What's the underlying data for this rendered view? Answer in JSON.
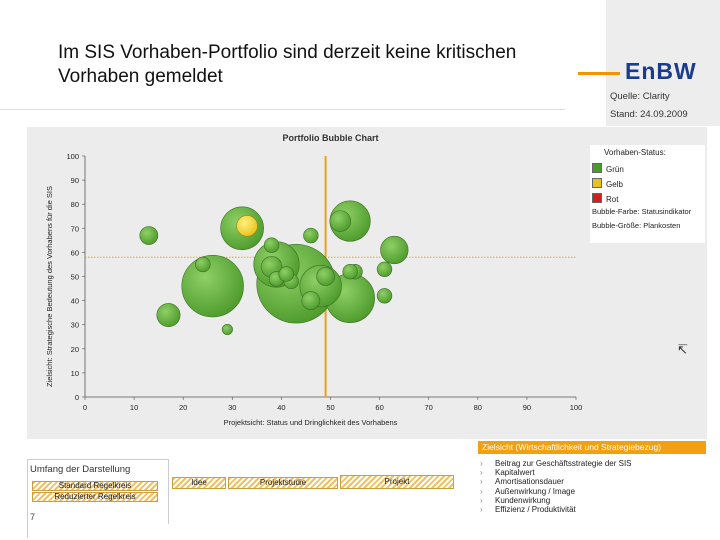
{
  "slide": {
    "title_line1": "Im SIS Vorhaben-Portfolio sind derzeit keine kritischen",
    "title_line2": "Vorhaben gemeldet",
    "logo": "EnBW",
    "source": "Quelle: Clarity",
    "stand": "Stand: 24.09.2009",
    "page_number": "7"
  },
  "chart_data": {
    "type": "scatter",
    "title": "Portfolio Bubble Chart",
    "xlabel": "Projektsicht: Status und Dringlichkeit des Vorhabens",
    "ylabel": "Zielsicht: Strategische Bedeutung des Vorhabens für die SIS",
    "xlim": [
      0,
      100
    ],
    "ylim": [
      0,
      100
    ],
    "xticks": [
      0,
      10,
      20,
      30,
      40,
      50,
      60,
      70,
      80,
      90,
      100
    ],
    "yticks": [
      0,
      10,
      20,
      30,
      40,
      50,
      60,
      70,
      80,
      90,
      100
    ],
    "reference_lines": {
      "x": 49,
      "y": 58
    },
    "colors": {
      "gruen": "#4c9a2a",
      "gelb": "#e8c21a",
      "rot": "#cc2222",
      "reference": "#f0a010"
    },
    "legend": {
      "title": "Vorhaben-Status:",
      "items": [
        {
          "label": "Grün",
          "color": "#4c9a2a"
        },
        {
          "label": "Gelb",
          "color": "#e8c21a"
        },
        {
          "label": "Rot",
          "color": "#cc2222"
        }
      ],
      "note1": "Bubble-Farbe: Statusindikator",
      "note2": "Bubble-Größe: Plankosten"
    },
    "series": [
      {
        "name": "Grün",
        "points": [
          {
            "x": 43,
            "y": 47,
            "size": 5.7
          },
          {
            "x": 26,
            "y": 46,
            "size": 3.5
          },
          {
            "x": 54,
            "y": 41,
            "size": 2.2
          },
          {
            "x": 32,
            "y": 70,
            "size": 1.7
          },
          {
            "x": 54,
            "y": 73,
            "size": 1.5
          },
          {
            "x": 39,
            "y": 55,
            "size": 1.9
          },
          {
            "x": 48,
            "y": 46,
            "size": 1.6
          },
          {
            "x": 63,
            "y": 61,
            "size": 0.7
          },
          {
            "x": 17,
            "y": 34,
            "size": 0.5
          },
          {
            "x": 13,
            "y": 67,
            "size": 0.3
          },
          {
            "x": 38,
            "y": 54,
            "size": 0.4
          },
          {
            "x": 52,
            "y": 73,
            "size": 0.4
          },
          {
            "x": 46,
            "y": 40,
            "size": 0.3
          },
          {
            "x": 49,
            "y": 50,
            "size": 0.3
          },
          {
            "x": 61,
            "y": 42,
            "size": 0.2
          },
          {
            "x": 24,
            "y": 55,
            "size": 0.2
          },
          {
            "x": 55,
            "y": 52,
            "size": 0.2
          },
          {
            "x": 61,
            "y": 53,
            "size": 0.2
          },
          {
            "x": 39,
            "y": 49,
            "size": 0.2
          },
          {
            "x": 42,
            "y": 48,
            "size": 0.2
          },
          {
            "x": 41,
            "y": 51,
            "size": 0.2
          },
          {
            "x": 54,
            "y": 52,
            "size": 0.2
          },
          {
            "x": 38,
            "y": 63,
            "size": 0.2
          },
          {
            "x": 46,
            "y": 67,
            "size": 0.2
          },
          {
            "x": 29,
            "y": 28,
            "size": 0.1
          }
        ]
      },
      {
        "name": "Gelb",
        "points": [
          {
            "x": 33,
            "y": 71,
            "size": 0.4
          }
        ]
      }
    ]
  },
  "ziel_box": {
    "header": "Zielsicht (Wirtschaftlichkeit und Strategiebezug)",
    "items": [
      "Beitrag zur Geschäftsstrategie der SIS",
      "Kapitalwert",
      "Amortisationsdauer",
      "Außenwirkung / Image",
      "Kundenwirkung",
      "Effizienz / Produktivität"
    ]
  },
  "umfang_box": {
    "title": "Umfang der Darstellung",
    "standard": "Standard Regelkreis",
    "reduziert": "Reduzierter Regelkreis"
  },
  "phases": {
    "idee": "Idee",
    "projektstudie": "Projektstudie",
    "projekt": "Projekt"
  }
}
